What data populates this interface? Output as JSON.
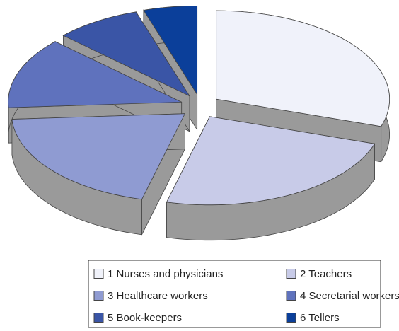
{
  "chart_data": {
    "type": "pie",
    "categories": [
      "1 Nurses and physicians",
      "2 Teachers",
      "3 Healthcare workers",
      "4 Secretarial workers",
      "5 Book-keepers",
      "6 Tellers"
    ],
    "values": [
      30,
      24,
      20,
      13,
      8,
      5
    ],
    "colors": [
      "#f0f2fa",
      "#c8cbe8",
      "#8f9bd2",
      "#5f72bd",
      "#3a55a6",
      "#0b3f9a"
    ],
    "legend": "bottom"
  }
}
